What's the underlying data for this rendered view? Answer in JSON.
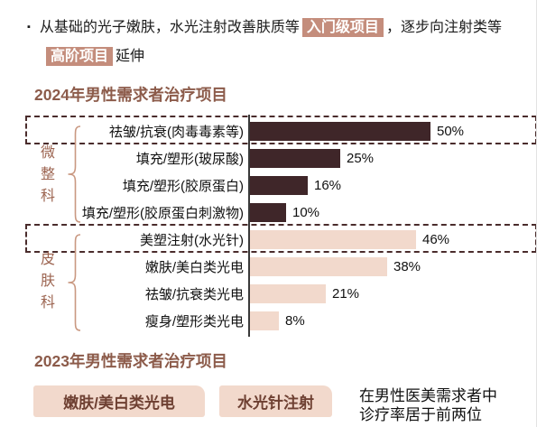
{
  "bullet": {
    "marker": "▪",
    "line1_pre": "从基础的光子嫩肤，水光注射改善肤质等",
    "line1_highlight": "入门级项目",
    "line1_post": "，逐步向注射类等",
    "line2_highlight": "高阶项目",
    "line2_post": "延伸"
  },
  "chart_data": {
    "type": "bar",
    "orientation": "horizontal",
    "title": "2024年男性需求者治疗项目",
    "xlim": [
      0,
      55
    ],
    "unit": "%",
    "grid": false,
    "legend": "none",
    "groups": [
      {
        "name": "微整科",
        "row_indexes": [
          0,
          1,
          2,
          3
        ],
        "bar_color": "#3F2629"
      },
      {
        "name": "皮肤科",
        "row_indexes": [
          4,
          5,
          6,
          7
        ],
        "bar_color": "#F2D9CC"
      }
    ],
    "highlighted_rows": [
      0,
      4
    ],
    "rows": [
      {
        "label": "祛皱/抗衰(肉毒毒素等)",
        "value": 50,
        "value_label": "50%",
        "group": "微整科",
        "color": "#3F2629"
      },
      {
        "label": "填充/塑形(玻尿酸)",
        "value": 25,
        "value_label": "25%",
        "group": "微整科",
        "color": "#3F2629"
      },
      {
        "label": "填充/塑形(胶原蛋白)",
        "value": 16,
        "value_label": "16%",
        "group": "微整科",
        "color": "#3F2629"
      },
      {
        "label": "填充/塑形(胶原蛋白刺激物)",
        "value": 10,
        "value_label": "10%",
        "group": "微整科",
        "color": "#3F2629"
      },
      {
        "label": "美塑注射(水光针)",
        "value": 46,
        "value_label": "46%",
        "group": "皮肤科",
        "color": "#F2D9CC"
      },
      {
        "label": "嫩肤/美白类光电",
        "value": 38,
        "value_label": "38%",
        "group": "皮肤科",
        "color": "#F2D9CC"
      },
      {
        "label": "祛皱/抗衰类光电",
        "value": 21,
        "value_label": "21%",
        "group": "皮肤科",
        "color": "#F2D9CC"
      },
      {
        "label": "瘦身/塑形类光电",
        "value": 8,
        "value_label": "8%",
        "group": "皮肤科",
        "color": "#F2D9CC"
      }
    ]
  },
  "section_2023": {
    "title": "2023年男性需求者治疗项目",
    "boxes": [
      {
        "label": "嫩肤/美白类光电"
      },
      {
        "label": "水光针注射"
      }
    ],
    "note_line1": "在男性医美需求者中",
    "note_line2": "诊疗率居于前两位"
  },
  "colors": {
    "dark_bar": "#3F2629",
    "light_bar": "#F2D9CC",
    "title_brown": "#8C5B4A",
    "highlight_bg": "#C48D7C",
    "group_label_text": "#9C6450",
    "brace_stroke": "#C99881",
    "dashed_border": "#4A2C2C",
    "pill_bg": "#F2D9CC",
    "pill_text": "#6E4032",
    "axis": "#3a3a3a"
  }
}
